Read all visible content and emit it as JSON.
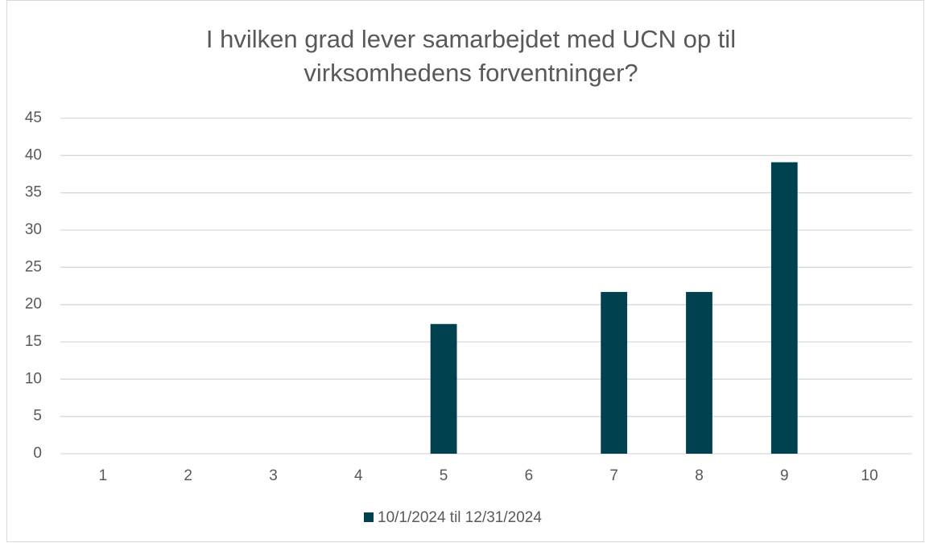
{
  "chart_data": {
    "type": "bar",
    "title": "I hvilken grad lever samarbejdet med UCN op til virksomhedens forventninger?",
    "categories": [
      "1",
      "2",
      "3",
      "4",
      "5",
      "6",
      "7",
      "8",
      "9",
      "10"
    ],
    "series": [
      {
        "name": "10/1/2024 til 12/31/2024",
        "color": "#00414f",
        "values": [
          0,
          0,
          0,
          0,
          17.4,
          0,
          21.7,
          21.7,
          39.1,
          0
        ]
      }
    ],
    "ylim": [
      0,
      45
    ],
    "yticks": [
      0,
      5,
      10,
      15,
      20,
      25,
      30,
      35,
      40,
      45
    ],
    "grid": true,
    "legend": "bottom"
  }
}
